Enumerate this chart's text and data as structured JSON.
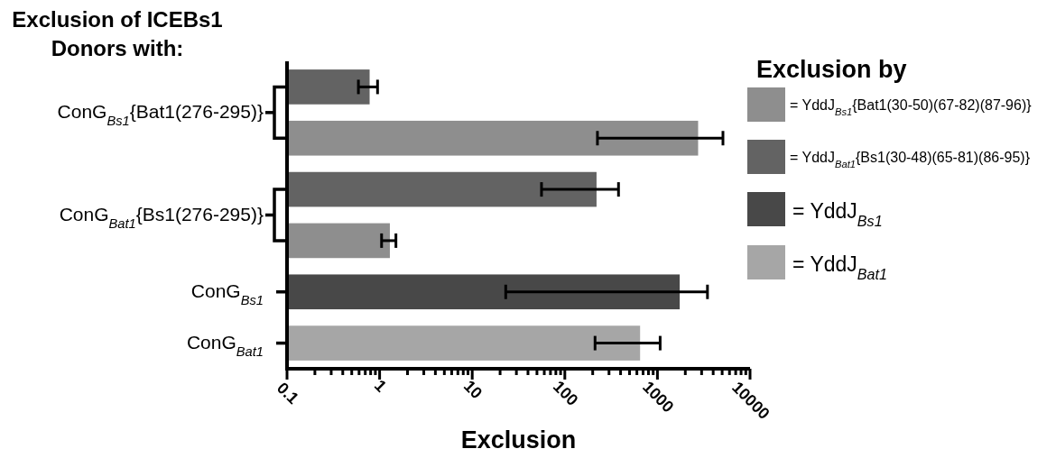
{
  "chart_data": {
    "type": "bar",
    "orientation": "horizontal",
    "title": "Exclusion of ICEBs1",
    "subtitle": "Donors with:",
    "xlabel": "Exclusion",
    "legend_title": "Exclusion by",
    "legend": "right",
    "log": "x",
    "grid": false,
    "categories": [
      "ConG$_{Bs1}${Bat1(276-295)}",
      "ConG$_{Bat1}${Bs1(276-295)}",
      "ConG$_{Bs1}$",
      "ConG$_{Bat1}$"
    ],
    "series": [
      {
        "name": "= YddJ$_{Bs1}${Bat1(30-50)(67-82)(87-96)}",
        "color": "#8e8e8e",
        "values": [
          2750,
          1.29,
          null,
          null
        ],
        "errors": [
          [
            225,
            5100
          ],
          [
            1.05,
            1.5
          ],
          null,
          null
        ]
      },
      {
        "name": "= YddJ$_{Bat1}${Bs1(30-48)(65-81)(86-95)}",
        "color": "#636363",
        "values": [
          0.78,
          220,
          null,
          null
        ],
        "errors": [
          [
            0.59,
            0.95
          ],
          [
            56,
            380
          ],
          null,
          null
        ]
      },
      {
        "name": "= YddJ$_{Bs1}$",
        "color": "#484848",
        "values": [
          null,
          null,
          1740,
          null
        ],
        "errors": [
          null,
          null,
          [
            23,
            3470
          ],
          null
        ]
      },
      {
        "name": "= YddJ$_{Bat1}$",
        "color": "#a6a6a6",
        "values": [
          null,
          null,
          null,
          650
        ],
        "errors": [
          null,
          null,
          null,
          [
            212,
            1070
          ]
        ]
      }
    ],
    "xlim": [
      0.1,
      10000
    ],
    "xticks": [
      0.1,
      1,
      10,
      100,
      1000,
      10000
    ]
  }
}
